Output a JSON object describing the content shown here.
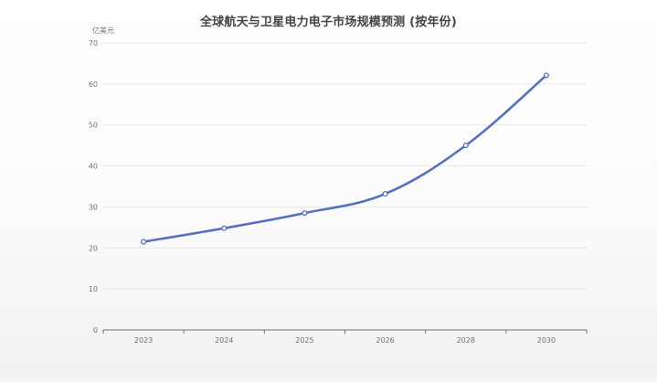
{
  "chart_data": {
    "type": "line",
    "title": "全球航天与卫星电力电子市场规模预测 (按年份)",
    "y_unit_label": "亿美元",
    "xlabel": "",
    "ylabel": "",
    "categories": [
      "2023",
      "2024",
      "2025",
      "2026",
      "2028",
      "2030"
    ],
    "series": [
      {
        "values": [
          21.5,
          24.8,
          28.5,
          33.2,
          45.0,
          62.1
        ]
      }
    ],
    "ylim": [
      0,
      70
    ],
    "yticks": [
      0,
      10,
      20,
      30,
      40,
      50,
      60,
      70
    ],
    "grid": true,
    "legend": "none",
    "colors": {
      "line": "#5470c6",
      "marker_fill": "#ffffff",
      "grid": "#e6e6e6",
      "axis": "#6e7079",
      "text": "#6e7079",
      "title": "#444444"
    }
  }
}
